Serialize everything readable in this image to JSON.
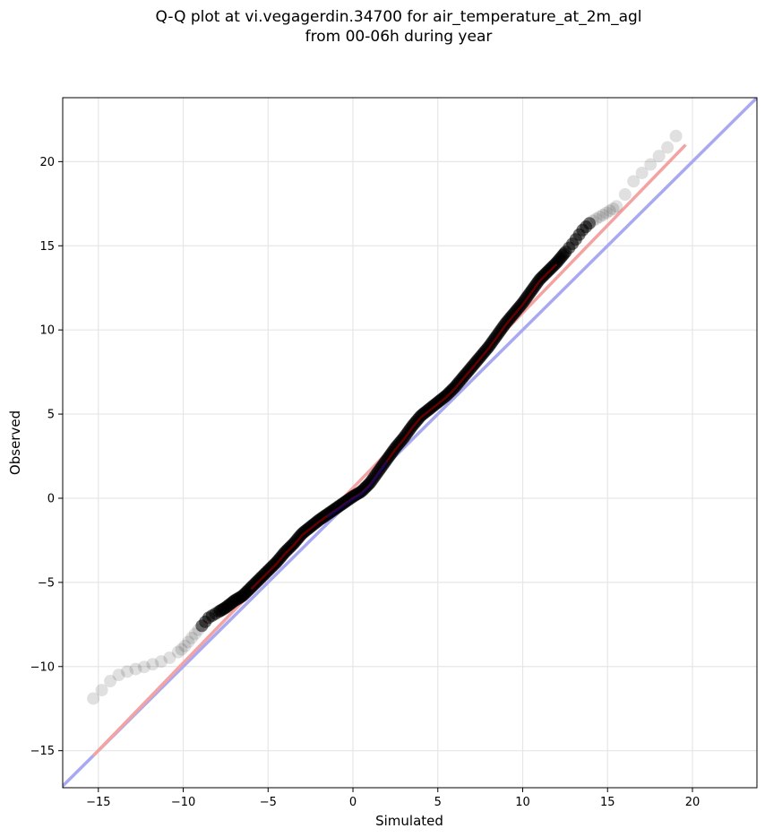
{
  "chart_data": {
    "type": "scatter",
    "title_lines": [
      "Q-Q plot at vi.vegagerdin.34700 for air_temperature_at_2m_agl",
      "from 00-06h during year"
    ],
    "xlabel": "Simulated",
    "ylabel": "Observed",
    "xlim": [
      -17.1,
      23.8
    ],
    "ylim": [
      -17.2,
      23.8
    ],
    "xticks": [
      -15,
      -10,
      -5,
      0,
      5,
      10,
      15,
      20
    ],
    "yticks": [
      -15,
      -10,
      -5,
      0,
      5,
      10,
      15,
      20
    ],
    "xtick_labels": [
      "−15",
      "−10",
      "−5",
      "0",
      "5",
      "10",
      "15",
      "20"
    ],
    "ytick_labels": [
      "−15",
      "−10",
      "−5",
      "0",
      "5",
      "10",
      "15",
      "20"
    ],
    "grid": true,
    "reference_line": {
      "slope": 1,
      "intercept": 0,
      "color": "#a9a9f2"
    },
    "fit_line": {
      "x": [
        -15.3,
        19.6
      ],
      "y": [
        -15.3,
        21.0
      ],
      "color": "#f4a3a3"
    },
    "quantile_curve": [
      [
        -15.3,
        -11.9
      ],
      [
        -14.8,
        -11.4
      ],
      [
        -14.5,
        -11.0
      ],
      [
        -14.2,
        -10.8
      ],
      [
        -13.8,
        -10.5
      ],
      [
        -13.3,
        -10.3
      ],
      [
        -12.8,
        -10.15
      ],
      [
        -12.2,
        -10.0
      ],
      [
        -11.6,
        -9.8
      ],
      [
        -11.0,
        -9.6
      ],
      [
        -10.5,
        -9.3
      ],
      [
        -10.0,
        -8.9
      ],
      [
        -9.5,
        -8.3
      ],
      [
        -9.0,
        -7.7
      ],
      [
        -8.5,
        -7.1
      ],
      [
        -8.0,
        -6.8
      ],
      [
        -7.5,
        -6.5
      ],
      [
        -7.0,
        -6.1
      ],
      [
        -6.5,
        -5.8
      ],
      [
        -6.0,
        -5.3
      ],
      [
        -5.5,
        -4.8
      ],
      [
        -5.0,
        -4.3
      ],
      [
        -4.5,
        -3.8
      ],
      [
        -4.0,
        -3.2
      ],
      [
        -3.5,
        -2.7
      ],
      [
        -3.0,
        -2.1
      ],
      [
        -2.5,
        -1.7
      ],
      [
        -2.0,
        -1.3
      ],
      [
        -1.5,
        -0.95
      ],
      [
        -1.0,
        -0.6
      ],
      [
        -0.5,
        -0.25
      ],
      [
        0.0,
        0.1
      ],
      [
        0.5,
        0.4
      ],
      [
        1.0,
        0.9
      ],
      [
        1.5,
        1.6
      ],
      [
        2.0,
        2.3
      ],
      [
        2.5,
        3.0
      ],
      [
        3.0,
        3.6
      ],
      [
        3.5,
        4.3
      ],
      [
        4.0,
        4.9
      ],
      [
        4.5,
        5.3
      ],
      [
        5.0,
        5.7
      ],
      [
        5.5,
        6.1
      ],
      [
        6.0,
        6.6
      ],
      [
        6.5,
        7.2
      ],
      [
        7.0,
        7.8
      ],
      [
        7.5,
        8.4
      ],
      [
        8.0,
        9.0
      ],
      [
        8.5,
        9.7
      ],
      [
        9.0,
        10.4
      ],
      [
        9.5,
        11.0
      ],
      [
        10.0,
        11.6
      ],
      [
        10.5,
        12.3
      ],
      [
        11.0,
        13.0
      ],
      [
        11.5,
        13.5
      ],
      [
        12.0,
        14.0
      ],
      [
        12.5,
        14.6
      ],
      [
        13.0,
        15.2
      ],
      [
        13.5,
        15.9
      ],
      [
        14.0,
        16.4
      ],
      [
        14.5,
        16.7
      ],
      [
        15.0,
        17.0
      ],
      [
        15.5,
        17.3
      ],
      [
        16.0,
        18.0
      ],
      [
        16.5,
        18.8
      ],
      [
        17.0,
        19.3
      ],
      [
        17.5,
        19.8
      ],
      [
        18.0,
        20.3
      ],
      [
        18.5,
        20.8
      ],
      [
        19.0,
        21.5
      ],
      [
        19.5,
        21.9
      ]
    ],
    "point_color": "#000000",
    "point_alpha_tail": 0.12,
    "point_alpha_core": 0.55
  }
}
